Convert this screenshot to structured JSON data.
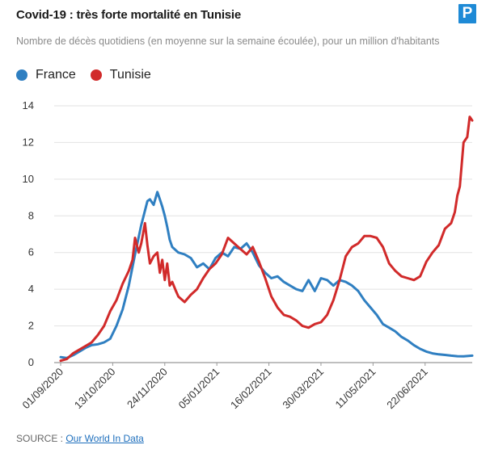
{
  "header": {
    "title": "Covid-19 : très forte mortalité en Tunisie",
    "subtitle": "Nombre de décès quotidiens (en moyenne sur la semaine écoulée), pour un million d'habitants",
    "logo_letter": "P"
  },
  "source": {
    "prefix": "SOURCE : ",
    "link_label": "Our World In Data"
  },
  "colors": {
    "france": "#2f7fc1",
    "tunisie": "#d12a2a",
    "grid": "#e2e2e2"
  },
  "chart_data": {
    "type": "line",
    "title": "Covid-19 : très forte mortalité en Tunisie",
    "ylabel": "Nombre de décès quotidiens (en moyenne sur la semaine écoulée), pour un million d'habitants",
    "xlabel": "",
    "ylim": [
      0,
      14
    ],
    "yticks": [
      0,
      2,
      4,
      6,
      8,
      10,
      12,
      14
    ],
    "x_start": "2020-09-01",
    "x_end": "2021-07-30",
    "xticks": [
      {
        "label": "01/09/2020",
        "day": 0
      },
      {
        "label": "13/10/2020",
        "day": 42
      },
      {
        "label": "24/11/2020",
        "day": 84
      },
      {
        "label": "05/01/2021",
        "day": 126
      },
      {
        "label": "16/02/2021",
        "day": 168
      },
      {
        "label": "30/03/2021",
        "day": 210
      },
      {
        "label": "11/05/2021",
        "day": 252
      },
      {
        "label": "22/06/2021",
        "day": 294
      }
    ],
    "legend_position": "top-left",
    "series": [
      {
        "name": "France",
        "color": "#2f7fc1",
        "days": [
          0,
          5,
          10,
          15,
          20,
          25,
          30,
          35,
          40,
          45,
          50,
          55,
          60,
          65,
          70,
          72,
          75,
          78,
          80,
          82,
          84,
          86,
          88,
          90,
          95,
          100,
          105,
          110,
          115,
          120,
          125,
          130,
          135,
          140,
          145,
          150,
          155,
          160,
          165,
          170,
          175,
          180,
          185,
          190,
          195,
          200,
          205,
          210,
          215,
          220,
          225,
          230,
          235,
          240,
          245,
          250,
          255,
          260,
          265,
          270,
          275,
          280,
          285,
          290,
          295,
          300,
          305,
          310,
          315,
          320,
          325,
          332
        ],
        "values": [
          0.3,
          0.25,
          0.4,
          0.6,
          0.8,
          0.95,
          1.0,
          1.1,
          1.3,
          2.0,
          2.9,
          4.2,
          5.9,
          7.5,
          8.8,
          8.9,
          8.6,
          9.3,
          8.9,
          8.5,
          8.0,
          7.4,
          6.7,
          6.3,
          6.0,
          5.9,
          5.7,
          5.2,
          5.4,
          5.1,
          5.7,
          6.0,
          5.8,
          6.3,
          6.2,
          6.5,
          6.0,
          5.3,
          4.9,
          4.6,
          4.7,
          4.4,
          4.2,
          4.0,
          3.9,
          4.5,
          3.9,
          4.6,
          4.5,
          4.2,
          4.5,
          4.4,
          4.2,
          3.9,
          3.4,
          3.0,
          2.6,
          2.1,
          1.9,
          1.7,
          1.4,
          1.2,
          0.95,
          0.75,
          0.6,
          0.5,
          0.45,
          0.42,
          0.38,
          0.35,
          0.34,
          0.38
        ]
      },
      {
        "name": "Tunisie",
        "color": "#d12a2a",
        "days": [
          0,
          5,
          10,
          15,
          20,
          25,
          30,
          35,
          40,
          45,
          50,
          55,
          58,
          60,
          63,
          65,
          68,
          70,
          72,
          75,
          78,
          80,
          82,
          84,
          86,
          88,
          90,
          93,
          95,
          100,
          105,
          110,
          115,
          120,
          125,
          130,
          135,
          140,
          145,
          150,
          155,
          160,
          165,
          170,
          175,
          180,
          185,
          190,
          195,
          200,
          205,
          210,
          215,
          220,
          225,
          230,
          235,
          240,
          245,
          250,
          255,
          260,
          265,
          270,
          275,
          280,
          285,
          290,
          295,
          300,
          305,
          310,
          315,
          318,
          320,
          322,
          325,
          328,
          330,
          332
        ],
        "values": [
          0.1,
          0.2,
          0.5,
          0.7,
          0.9,
          1.1,
          1.5,
          2.0,
          2.8,
          3.4,
          4.3,
          5.0,
          5.6,
          6.8,
          6.0,
          6.5,
          7.6,
          6.4,
          5.4,
          5.8,
          6.0,
          4.9,
          5.6,
          4.5,
          5.4,
          4.2,
          4.4,
          3.9,
          3.6,
          3.3,
          3.7,
          4.0,
          4.6,
          5.1,
          5.4,
          5.9,
          6.8,
          6.5,
          6.2,
          5.9,
          6.3,
          5.5,
          4.6,
          3.6,
          3.0,
          2.6,
          2.5,
          2.3,
          2.0,
          1.9,
          2.1,
          2.2,
          2.6,
          3.4,
          4.5,
          5.8,
          6.3,
          6.5,
          6.9,
          6.9,
          6.8,
          6.3,
          5.4,
          5.0,
          4.7,
          4.6,
          4.5,
          4.7,
          5.5,
          6.0,
          6.4,
          7.3,
          7.6,
          8.2,
          9.1,
          9.6,
          12.0,
          12.3,
          13.4,
          13.2
        ]
      }
    ]
  }
}
